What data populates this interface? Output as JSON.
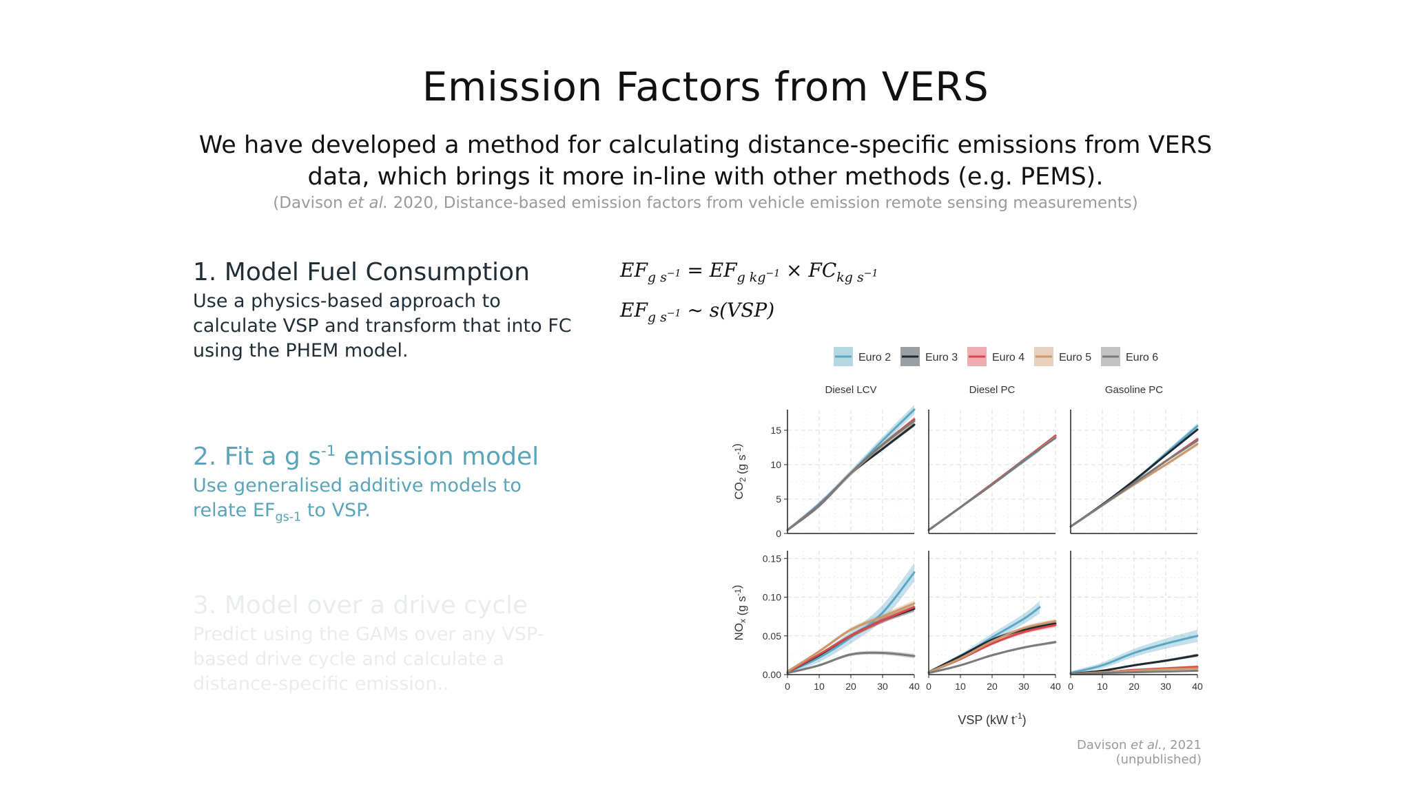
{
  "slide": {
    "title": "Emission Factors from VERS",
    "subtitle_line1": "We have developed a method for calculating distance-specific emissions from VERS",
    "subtitle_line2": "data, which brings it more in-line with other methods (e.g. PEMS).",
    "citation_pre": "(Davison ",
    "citation_etal": "et al.",
    "citation_post": " 2020, Distance-based emission factors from vehicle emission remote sensing measurements)"
  },
  "steps": [
    {
      "heading": "1. Model Fuel Consumption",
      "body": "Use a physics-based approach to calculate VSP and transform that into FC using the PHEM model."
    },
    {
      "heading_pre": "2. Fit a g s",
      "heading_sup": "-1",
      "heading_post": " emission model",
      "body_pre": "Use generalised additive models to relate EF",
      "body_sub": "gs-1",
      "body_post": " to VSP."
    },
    {
      "heading": "3. Model over a drive cycle",
      "body": "Predict using the GAMs over any VSP-based drive cycle and calculate a distance-specific emission.."
    }
  ],
  "equations": {
    "eq1": "EF_{g s^-1} = EF_{g kg^-1} × FC_{kg s^-1}",
    "eq2": "EF_{g s^-1} ~ s(VSP)"
  },
  "figure_credit": {
    "pre": "Davison ",
    "etal": "et al.",
    "post": ", 2021 (unpublished)"
  },
  "chart_data": {
    "type": "line",
    "legend_position": "top",
    "series_names": [
      "Euro 2",
      "Euro 3",
      "Euro 4",
      "Euro 5",
      "Euro 6"
    ],
    "colors": {
      "Euro 2": "#5aa7c3",
      "Euro 3": "#1e2a33",
      "Euro 4": "#d9474b",
      "Euro 5": "#c9996b",
      "Euro 6": "#7a7a7a"
    },
    "xlabel": "VSP (kW t",
    "xlabel_sup": "-1",
    "xlabel_end": ")",
    "x_ticks": [
      0,
      10,
      20,
      30,
      40
    ],
    "x_range": [
      0,
      40
    ],
    "grid": true,
    "panel_columns": [
      "Diesel LCV",
      "Diesel PC",
      "Gasoline PC"
    ],
    "rows": [
      {
        "ylabel_pre": "CO",
        "ylabel_sub": "2",
        "ylabel_post": " (g s",
        "ylabel_sup": "-1",
        "ylabel_end": ")",
        "y_range": [
          0,
          18
        ],
        "y_ticks": [
          0,
          5,
          10,
          15
        ],
        "y_tick_labels": [
          "0",
          "5",
          "10",
          "15"
        ],
        "panels": [
          {
            "series": [
              {
                "name": "Euro 2",
                "x": [
                  0,
                  10,
                  20,
                  30,
                  40
                ],
                "y": [
                  0.5,
                  4.3,
                  8.8,
                  13.5,
                  18.0
                ],
                "ci": 0.7
              },
              {
                "name": "Euro 3",
                "x": [
                  0,
                  10,
                  20,
                  30,
                  40
                ],
                "y": [
                  0.5,
                  4.1,
                  8.7,
                  12.3,
                  15.8
                ],
                "ci": 0.3
              },
              {
                "name": "Euro 4",
                "x": [
                  0,
                  10,
                  20,
                  30,
                  40
                ],
                "y": [
                  0.5,
                  4.1,
                  8.8,
                  12.9,
                  16.6
                ],
                "ci": 0.3
              },
              {
                "name": "Euro 5",
                "x": [
                  0,
                  10,
                  20,
                  30,
                  40
                ],
                "y": [
                  0.5,
                  4.0,
                  8.7,
                  12.8,
                  16.3
                ],
                "ci": 0.3
              },
              {
                "name": "Euro 6",
                "x": [
                  0,
                  10,
                  20,
                  30,
                  40
                ],
                "y": [
                  0.5,
                  4.0,
                  8.8,
                  12.9,
                  16.4
                ],
                "ci": 0.3
              }
            ]
          },
          {
            "series": [
              {
                "name": "Euro 2",
                "x": [
                  0,
                  10,
                  20,
                  30,
                  35
                ],
                "y": [
                  0.5,
                  3.8,
                  7.1,
                  10.5,
                  12.2
                ],
                "ci": 0.3
              },
              {
                "name": "Euro 3",
                "x": [
                  0,
                  10,
                  20,
                  30,
                  40
                ],
                "y": [
                  0.5,
                  3.8,
                  7.2,
                  10.6,
                  14.2
                ],
                "ci": 0.2
              },
              {
                "name": "Euro 4",
                "x": [
                  0,
                  10,
                  20,
                  30,
                  40
                ],
                "y": [
                  0.5,
                  3.8,
                  7.2,
                  10.7,
                  14.2
                ],
                "ci": 0.2
              },
              {
                "name": "Euro 5",
                "x": [
                  0,
                  10,
                  20,
                  30,
                  40
                ],
                "y": [
                  0.5,
                  3.8,
                  7.1,
                  10.6,
                  14.0
                ],
                "ci": 0.2
              },
              {
                "name": "Euro 6",
                "x": [
                  0,
                  10,
                  20,
                  30,
                  40
                ],
                "y": [
                  0.5,
                  3.8,
                  7.1,
                  10.6,
                  13.9
                ],
                "ci": 0.2
              }
            ]
          },
          {
            "series": [
              {
                "name": "Euro 2",
                "x": [
                  0,
                  10,
                  20,
                  30,
                  40
                ],
                "y": [
                  1.0,
                  4.2,
                  7.6,
                  11.6,
                  15.6
                ],
                "ci": 0.4
              },
              {
                "name": "Euro 3",
                "x": [
                  0,
                  10,
                  20,
                  30,
                  40
                ],
                "y": [
                  1.0,
                  4.2,
                  7.7,
                  11.4,
                  15.1
                ],
                "ci": 0.2
              },
              {
                "name": "Euro 4",
                "x": [
                  0,
                  10,
                  20,
                  30,
                  40
                ],
                "y": [
                  1.0,
                  4.1,
                  7.3,
                  10.5,
                  13.7
                ],
                "ci": 0.2
              },
              {
                "name": "Euro 5",
                "x": [
                  0,
                  10,
                  20,
                  30,
                  40
                ],
                "y": [
                  1.0,
                  4.1,
                  7.1,
                  10.0,
                  13.0
                ],
                "ci": 0.3
              },
              {
                "name": "Euro 6",
                "x": [
                  0,
                  10,
                  20,
                  30,
                  40
                ],
                "y": [
                  1.0,
                  4.1,
                  7.3,
                  10.5,
                  13.5
                ],
                "ci": 0.2
              }
            ]
          }
        ]
      },
      {
        "ylabel_pre": "NO",
        "ylabel_sub": "x",
        "ylabel_post": " (g s",
        "ylabel_sup": "-1",
        "ylabel_end": ")",
        "y_range": [
          0,
          0.16
        ],
        "y_ticks": [
          0,
          0.05,
          0.1,
          0.15
        ],
        "y_tick_labels": [
          "0.00",
          "0.05",
          "0.10",
          "0.15"
        ],
        "panels": [
          {
            "series": [
              {
                "name": "Euro 2",
                "x": [
                  0,
                  10,
                  20,
                  30,
                  40
                ],
                "y": [
                  0.003,
                  0.022,
                  0.048,
                  0.08,
                  0.132
                ],
                "ci": 0.012
              },
              {
                "name": "Euro 3",
                "x": [
                  0,
                  10,
                  20,
                  30,
                  40
                ],
                "y": [
                  0.003,
                  0.025,
                  0.05,
                  0.07,
                  0.085
                ],
                "ci": 0.004
              },
              {
                "name": "Euro 4",
                "x": [
                  0,
                  10,
                  20,
                  30,
                  40
                ],
                "y": [
                  0.003,
                  0.026,
                  0.05,
                  0.07,
                  0.087
                ],
                "ci": 0.004
              },
              {
                "name": "Euro 5",
                "x": [
                  0,
                  10,
                  20,
                  30,
                  40
                ],
                "y": [
                  0.004,
                  0.03,
                  0.058,
                  0.075,
                  0.092
                ],
                "ci": 0.004
              },
              {
                "name": "Euro 6",
                "x": [
                  0,
                  10,
                  20,
                  30,
                  40
                ],
                "y": [
                  0.002,
                  0.012,
                  0.026,
                  0.028,
                  0.024
                ],
                "ci": 0.003
              }
            ]
          },
          {
            "series": [
              {
                "name": "Euro 2",
                "x": [
                  0,
                  10,
                  20,
                  30,
                  35
                ],
                "y": [
                  0.003,
                  0.023,
                  0.048,
                  0.072,
                  0.087
                ],
                "ci": 0.008
              },
              {
                "name": "Euro 3",
                "x": [
                  0,
                  10,
                  20,
                  30,
                  40
                ],
                "y": [
                  0.003,
                  0.024,
                  0.045,
                  0.058,
                  0.066
                ],
                "ci": 0.003
              },
              {
                "name": "Euro 4",
                "x": [
                  0,
                  10,
                  20,
                  30,
                  40
                ],
                "y": [
                  0.003,
                  0.02,
                  0.04,
                  0.055,
                  0.064
                ],
                "ci": 0.003
              },
              {
                "name": "Euro 5",
                "x": [
                  0,
                  10,
                  20,
                  30,
                  40
                ],
                "y": [
                  0.003,
                  0.021,
                  0.043,
                  0.06,
                  0.069
                ],
                "ci": 0.003
              },
              {
                "name": "Euro 6",
                "x": [
                  0,
                  10,
                  20,
                  30,
                  40
                ],
                "y": [
                  0.002,
                  0.012,
                  0.025,
                  0.035,
                  0.042
                ],
                "ci": 0.002
              }
            ]
          },
          {
            "series": [
              {
                "name": "Euro 2",
                "x": [
                  0,
                  10,
                  20,
                  30,
                  40
                ],
                "y": [
                  0.002,
                  0.012,
                  0.028,
                  0.04,
                  0.05
                ],
                "ci": 0.008
              },
              {
                "name": "Euro 3",
                "x": [
                  0,
                  10,
                  20,
                  30,
                  40
                ],
                "y": [
                  0.001,
                  0.005,
                  0.012,
                  0.018,
                  0.025
                ],
                "ci": 0.002
              },
              {
                "name": "Euro 4",
                "x": [
                  0,
                  10,
                  20,
                  30,
                  40
                ],
                "y": [
                  0.001,
                  0.003,
                  0.006,
                  0.008,
                  0.01
                ],
                "ci": 0.002
              },
              {
                "name": "Euro 5",
                "x": [
                  0,
                  10,
                  20,
                  30,
                  40
                ],
                "y": [
                  0.001,
                  0.003,
                  0.005,
                  0.007,
                  0.008
                ],
                "ci": 0.002
              },
              {
                "name": "Euro 6",
                "x": [
                  0,
                  10,
                  20,
                  30,
                  40
                ],
                "y": [
                  0.001,
                  0.002,
                  0.003,
                  0.004,
                  0.005
                ],
                "ci": 0.001
              }
            ]
          }
        ]
      }
    ]
  }
}
